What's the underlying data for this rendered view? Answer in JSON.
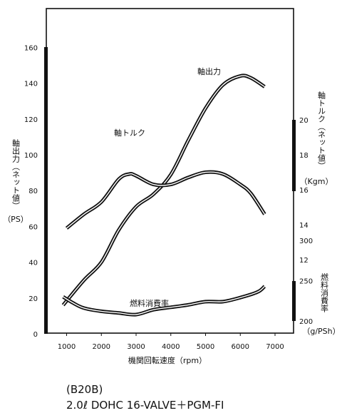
{
  "chart_data": {
    "type": "line",
    "title": "",
    "xlabel": "機関回転速度（rpm）",
    "xlim": [
      500,
      7500
    ],
    "x_ticks": [
      "1000",
      "2000",
      "3000",
      "4000",
      "5000",
      "6000",
      "7000"
    ],
    "left_axis": {
      "label": "軸出力（ネット値）",
      "unit": "（PS）",
      "ylim": [
        0,
        180
      ],
      "ticks": [
        "0",
        "20",
        "40",
        "60",
        "80",
        "100",
        "120",
        "140",
        "160"
      ]
    },
    "torque_axis": {
      "label": "軸トルク（ネット値）",
      "unit": "（Kgm）",
      "ticks": [
        "12",
        "14",
        "16",
        "18",
        "20"
      ]
    },
    "fuel_axis": {
      "label": "燃料消費率",
      "unit": "（g/PSh）",
      "ticks": [
        "200",
        "250",
        "300"
      ]
    },
    "series": [
      {
        "name": "軸出力",
        "axis": "power",
        "x": [
          900,
          1500,
          2000,
          2500,
          3000,
          3500,
          4000,
          4500,
          5000,
          5500,
          6000,
          6300,
          6700
        ],
        "values": [
          16,
          30,
          40,
          58,
          71,
          78,
          89,
          108,
          126,
          139,
          144,
          143,
          138
        ]
      },
      {
        "name": "軸トルク",
        "axis": "torque",
        "x": [
          1000,
          1500,
          2000,
          2500,
          2800,
          3000,
          3500,
          4000,
          4500,
          5000,
          5500,
          6000,
          6300,
          6700
        ],
        "values": [
          13.8,
          14.6,
          15.3,
          16.6,
          16.9,
          16.8,
          16.3,
          16.3,
          16.7,
          17.0,
          16.9,
          16.3,
          15.8,
          14.6
        ]
      },
      {
        "name": "燃料消費率",
        "axis": "fuel",
        "x": [
          900,
          1200,
          1500,
          2000,
          2500,
          3000,
          3500,
          4000,
          4500,
          5000,
          5500,
          6000,
          6500,
          6700
        ],
        "values": [
          230,
          222,
          216,
          212,
          210,
          208,
          214,
          217,
          220,
          224,
          224,
          229,
          236,
          243
        ]
      }
    ]
  },
  "caption": {
    "model": "(B20B)",
    "spec": "2.0ℓ  DOHC 16-VALVE＋PGM-FI"
  }
}
